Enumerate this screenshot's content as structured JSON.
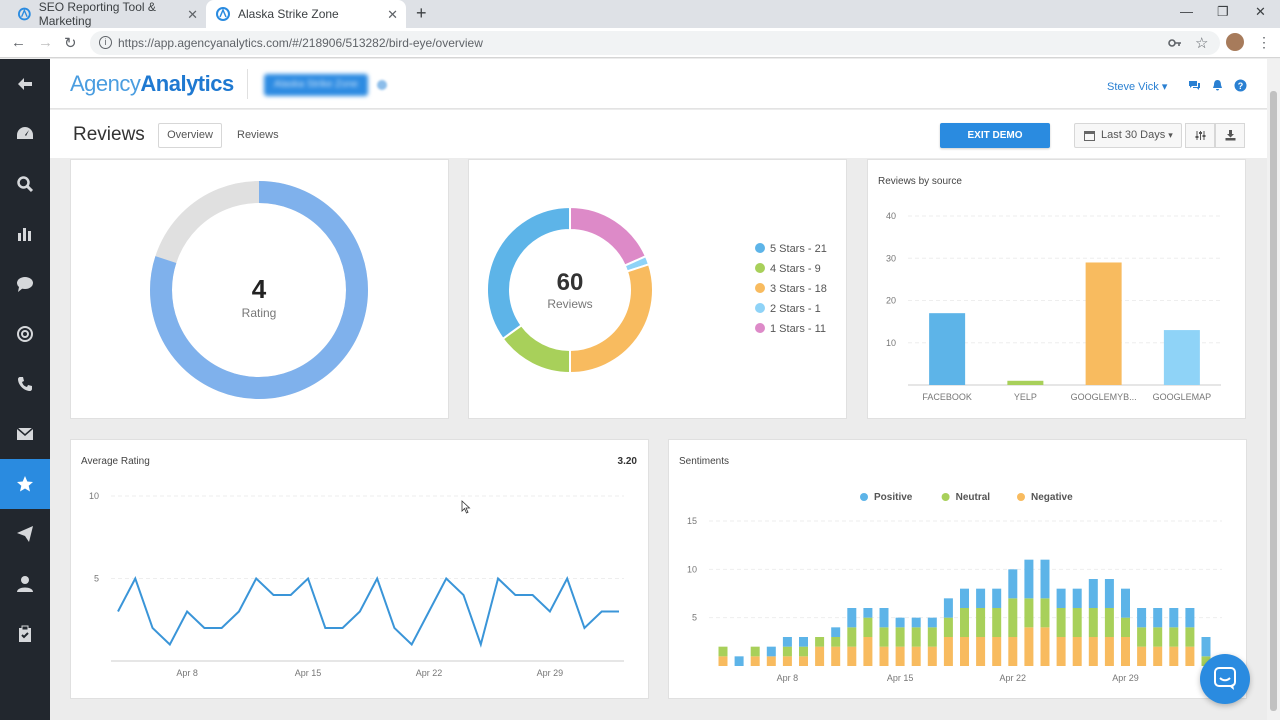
{
  "browser": {
    "tabs": [
      {
        "title": "SEO Reporting Tool & Marketing"
      },
      {
        "title": "Alaska Strike Zone"
      }
    ],
    "url": "https://app.agencyanalytics.com/#/218906/513282/bird-eye/overview"
  },
  "header": {
    "logo_part1": "Agency",
    "logo_part2": "Analytics",
    "client_name": "Alaska Strike Zone",
    "user_name": "Steve Vick"
  },
  "subheader": {
    "title": "Reviews",
    "tab_overview": "Overview",
    "tab_reviews": "Reviews",
    "exit_demo": "EXIT DEMO",
    "date_range": "Last 30 Days"
  },
  "sidebar": {
    "items": [
      "back",
      "dashboard",
      "search",
      "reports",
      "chat",
      "reviews-target",
      "calls",
      "email",
      "reviews",
      "send",
      "users",
      "tasks"
    ],
    "active": "reviews"
  },
  "rating_card": {
    "value": "4",
    "label": "Rating",
    "fill_fraction": 0.8
  },
  "breakdown_card": {
    "value": "60",
    "label": "Reviews",
    "legend": [
      {
        "label": "5 Stars - 21",
        "color": "#5db4e8"
      },
      {
        "label": "4 Stars - 9",
        "color": "#a8d05a"
      },
      {
        "label": "3 Stars - 18",
        "color": "#f8bb5f"
      },
      {
        "label": "2 Stars - 1",
        "color": "#8fd3f7"
      },
      {
        "label": "1 Stars - 11",
        "color": "#dd8ac8"
      }
    ]
  },
  "source_card": {
    "title": "Reviews by source",
    "chart_data": {
      "type": "bar",
      "categories": [
        "FACEBOOK",
        "YELP",
        "GOOGLEMYB...",
        "GOOGLEMAP"
      ],
      "values": [
        17,
        1,
        29,
        13
      ],
      "colors": [
        "#5db4e8",
        "#a8d05a",
        "#f8bb5f",
        "#8fd3f7"
      ],
      "yticks": [
        10,
        20,
        30,
        40
      ],
      "ylim": [
        0,
        40
      ]
    }
  },
  "avg_card": {
    "title": "Average Rating",
    "value": "3.20",
    "chart_data": {
      "type": "line",
      "color": "#3a95d8",
      "values": [
        3,
        5,
        2,
        1,
        3,
        2,
        2,
        3,
        5,
        4,
        4,
        5,
        2,
        2,
        3,
        5,
        2,
        1,
        3,
        5,
        4,
        1,
        5,
        4,
        4,
        3,
        5,
        2,
        3,
        3
      ],
      "xticks": [
        {
          "label": "Apr 8",
          "index": 4
        },
        {
          "label": "Apr 15",
          "index": 11
        },
        {
          "label": "Apr 22",
          "index": 18
        },
        {
          "label": "Apr 29",
          "index": 25
        }
      ],
      "yticks": [
        5,
        10
      ],
      "ylim": [
        0,
        10
      ]
    }
  },
  "sentiment_card": {
    "title": "Sentiments",
    "chart_data": {
      "type": "bar",
      "stacked": true,
      "series": [
        {
          "name": "Negative",
          "color": "#f8bb5f",
          "values": [
            1,
            0,
            1,
            1,
            1,
            1,
            2,
            2,
            2,
            3,
            2,
            2,
            2,
            2,
            3,
            3,
            3,
            3,
            3,
            4,
            4,
            3,
            3,
            3,
            3,
            3,
            2,
            2,
            2,
            2,
            0
          ]
        },
        {
          "name": "Neutral",
          "color": "#a8d05a",
          "values": [
            1,
            0,
            1,
            0,
            1,
            1,
            1,
            1,
            2,
            2,
            2,
            2,
            2,
            2,
            2,
            3,
            3,
            3,
            4,
            3,
            3,
            3,
            3,
            3,
            3,
            2,
            2,
            2,
            2,
            2,
            1
          ]
        },
        {
          "name": "Positive",
          "color": "#5db4e8",
          "values": [
            0,
            1,
            0,
            1,
            1,
            1,
            0,
            1,
            2,
            1,
            2,
            1,
            1,
            1,
            2,
            2,
            2,
            2,
            3,
            4,
            4,
            2,
            2,
            3,
            3,
            3,
            2,
            2,
            2,
            2,
            2
          ]
        }
      ],
      "legend_order": [
        "Positive",
        "Neutral",
        "Negative"
      ],
      "xticks": [
        {
          "label": "Apr 8",
          "index": 4
        },
        {
          "label": "Apr 15",
          "index": 11
        },
        {
          "label": "Apr 22",
          "index": 18
        },
        {
          "label": "Apr 29",
          "index": 25
        }
      ],
      "yticks": [
        5,
        10,
        15
      ],
      "ylim": [
        0,
        15
      ]
    }
  }
}
